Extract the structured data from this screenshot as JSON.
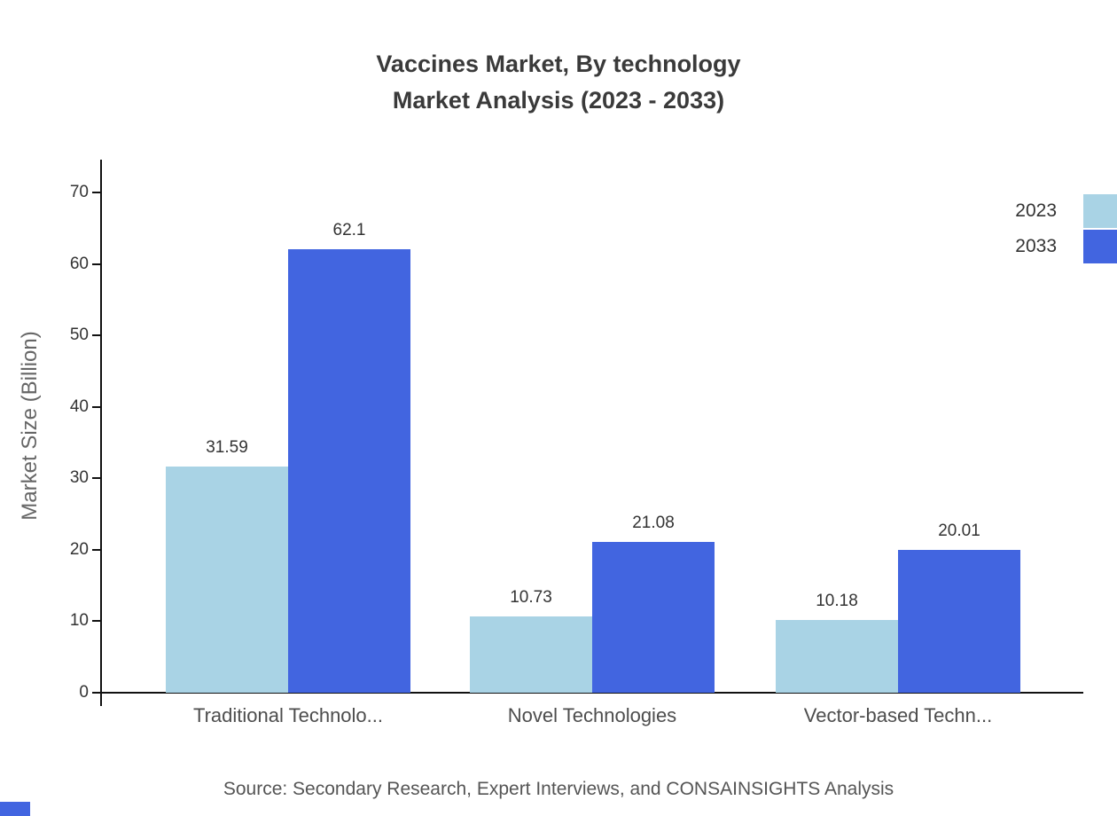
{
  "title": {
    "line1": "Vaccines Market, By technology",
    "line2": "Market Analysis (2023 - 2033)"
  },
  "chart_data": {
    "type": "bar",
    "title": "Vaccines Market, By technology — Market Analysis (2023 - 2033)",
    "categories": [
      "Traditional Technolo...",
      "Novel Technologies",
      "Vector-based Techn..."
    ],
    "series": [
      {
        "name": "2023",
        "color": "#a9d3e5",
        "values": [
          31.59,
          10.73,
          10.18
        ]
      },
      {
        "name": "2033",
        "color": "#4265e0",
        "values": [
          62.1,
          21.08,
          20.01
        ]
      }
    ],
    "xlabel": "",
    "ylabel": "Market Size (Billion)",
    "ylim": [
      0,
      70
    ],
    "yticks": [
      0,
      10,
      20,
      30,
      40,
      50,
      60,
      70
    ],
    "grid": false,
    "legend_position": "top-right",
    "value_labels": [
      "31.59",
      "62.1",
      "10.73",
      "21.08",
      "10.18",
      "20.01"
    ]
  },
  "source": "Source: Secondary Research, Expert Interviews, and CONSAINSIGHTS Analysis"
}
